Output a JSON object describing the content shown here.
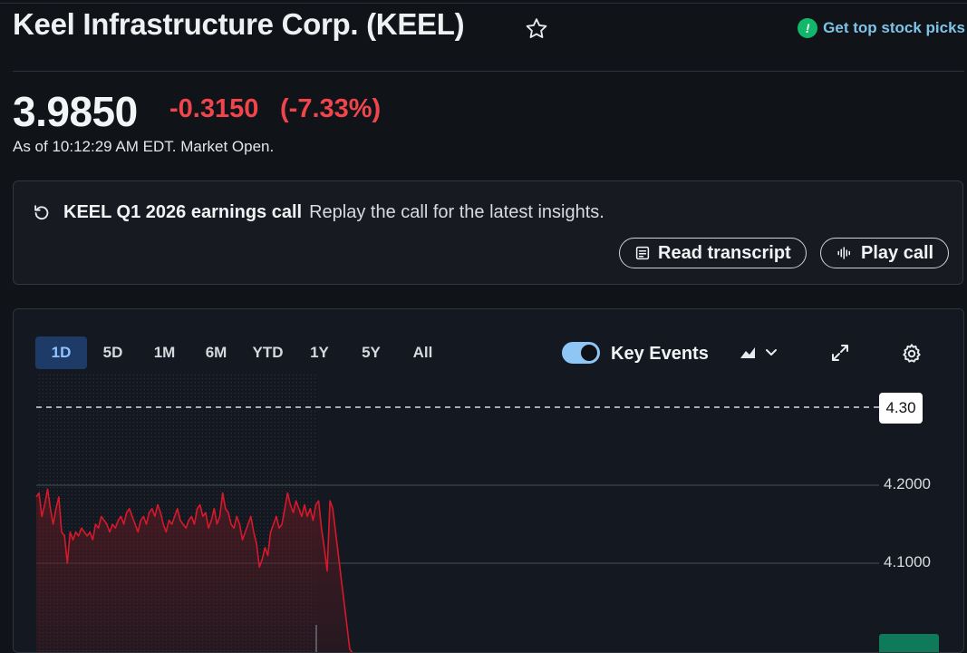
{
  "header": {
    "title": "Keel Infrastructure Corp. (KEEL)",
    "promo_label": "Get top stock picks",
    "promo_icon": "exclamation-badge-icon"
  },
  "quote": {
    "price": "3.9850",
    "change": "-0.3150",
    "change_pct": "(-7.33%)",
    "as_of": "As of 10:12:29 AM EDT. Market Open.",
    "down_color": "#f0454c"
  },
  "earnings": {
    "title": "KEEL Q1 2026 earnings call",
    "subtitle": "Replay the call for the latest insights.",
    "read_label": "Read transcript",
    "play_label": "Play call"
  },
  "chart_controls": {
    "ranges": [
      "1D",
      "5D",
      "1M",
      "6M",
      "YTD",
      "1Y",
      "5Y",
      "All"
    ],
    "active_range": "1D",
    "key_events_label": "Key Events",
    "key_events_on": true
  },
  "chart_data": {
    "type": "line",
    "series": [
      {
        "values": [
          4.185,
          4.19,
          4.16,
          4.175,
          4.195,
          4.17,
          4.15,
          4.17,
          4.185,
          4.14,
          4.135,
          4.1,
          4.14,
          4.13,
          4.14,
          4.135,
          4.145,
          4.14,
          4.135,
          4.14,
          4.13,
          4.15,
          4.145,
          4.16,
          4.155,
          4.15,
          4.14,
          4.15,
          4.145,
          4.155,
          4.16,
          4.15,
          4.165,
          4.17,
          4.16,
          4.15,
          4.14,
          4.155,
          4.16,
          4.15,
          4.165,
          4.17,
          4.16,
          4.175,
          4.165,
          4.15,
          4.14,
          4.155,
          4.15,
          4.16,
          4.17,
          4.155,
          4.15,
          4.145,
          4.155,
          4.16,
          4.15,
          4.17,
          4.175,
          4.16,
          4.165,
          4.145,
          4.155,
          4.17,
          4.15,
          4.16,
          4.19,
          4.17,
          4.165,
          4.15,
          4.145,
          4.16,
          4.15,
          4.13,
          4.14,
          4.15,
          4.16,
          4.14,
          4.125,
          4.095,
          4.105,
          4.12,
          4.11,
          4.14,
          4.15,
          4.16,
          4.145,
          4.15,
          4.17,
          4.19,
          4.175,
          4.165,
          4.18,
          4.17,
          4.16,
          4.175,
          4.16,
          4.17,
          4.155,
          4.175,
          4.18,
          4.145,
          4.12,
          4.09,
          4.18,
          4.17,
          4.14,
          4.11,
          4.08,
          4.05,
          4.02,
          3.99,
          3.985
        ],
        "color": "#d6192b"
      }
    ],
    "ylim": [
      3.985,
      4.33
    ],
    "yticks": [
      "4.2000",
      "4.1000"
    ],
    "reference_line": "4.30",
    "grid": true
  }
}
